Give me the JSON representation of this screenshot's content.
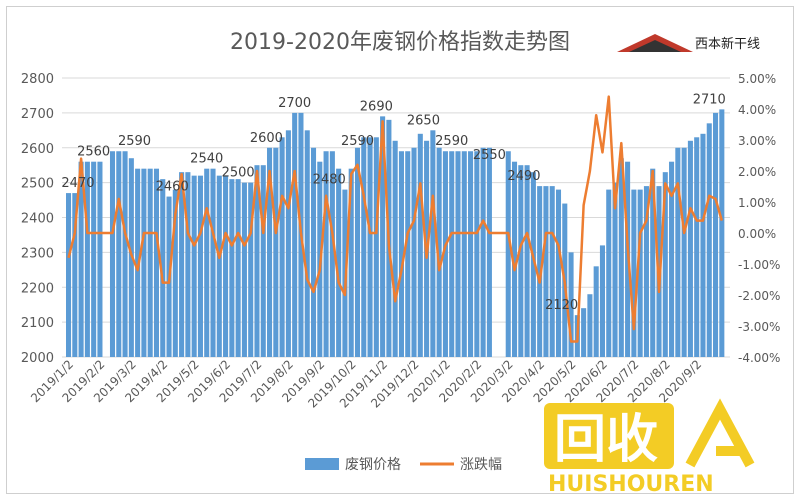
{
  "title": "2019-2020年废钢价格指数走势图",
  "logo": {
    "text": "西本新干线"
  },
  "watermark": {
    "text": "回收",
    "subtext": "HUISHOUREN"
  },
  "colors": {
    "bar": "#5B9BD5",
    "line": "#ED7D31",
    "axis": "#595959",
    "grid": "#d9d9d9"
  },
  "chart_data": {
    "type": "bar",
    "title": "2019-2020年废钢价格指数走势图",
    "xlabel": "",
    "ylabel": "",
    "ylim": [
      2000,
      2800
    ],
    "y2lim": [
      -4,
      5
    ],
    "yticks": [
      "2000",
      "2100",
      "2200",
      "2300",
      "2400",
      "2500",
      "2600",
      "2700",
      "2800"
    ],
    "y2ticks": [
      "-4.00%",
      "-3.00%",
      "-2.00%",
      "-1.00%",
      "0.00%",
      "1.00%",
      "2.00%",
      "3.00%",
      "4.00%",
      "5.00%"
    ],
    "categories": [
      "2019/1/2",
      "2019/2/2",
      "2019/3/2",
      "2019/4/2",
      "2019/5/2",
      "2019/6/2",
      "2019/7/2",
      "2019/8/2",
      "2019/9/2",
      "2019/10/2",
      "2019/11/2",
      "2019/12/2",
      "2020/1/2",
      "2020/2/2",
      "2020/3/2",
      "2020/4/2",
      "2020/5/2",
      "2020/6/2",
      "2020/7/2",
      "2020/8/2",
      "2020/9/2"
    ],
    "legend": [
      "废钢价格",
      "涨跌幅"
    ],
    "legend_position": "bottom",
    "annotations": [
      {
        "label": "2470",
        "x": 0.3,
        "value": 2470
      },
      {
        "label": "2560",
        "x": 0.8,
        "value": 2560
      },
      {
        "label": "2590",
        "x": 2.1,
        "value": 2590
      },
      {
        "label": "2460",
        "x": 3.3,
        "value": 2460
      },
      {
        "label": "2540",
        "x": 4.4,
        "value": 2540
      },
      {
        "label": "2500",
        "x": 5.4,
        "value": 2500
      },
      {
        "label": "2600",
        "x": 6.3,
        "value": 2600
      },
      {
        "label": "2700",
        "x": 7.2,
        "value": 2700
      },
      {
        "label": "2480",
        "x": 8.3,
        "value": 2480
      },
      {
        "label": "2590",
        "x": 9.2,
        "value": 2590
      },
      {
        "label": "2690",
        "x": 9.8,
        "value": 2690
      },
      {
        "label": "2650",
        "x": 11.3,
        "value": 2650
      },
      {
        "label": "2590",
        "x": 12.2,
        "value": 2590
      },
      {
        "label": "2550",
        "x": 13.4,
        "value": 2550
      },
      {
        "label": "2490",
        "x": 14.5,
        "value": 2490
      },
      {
        "label": "2120",
        "x": 15.7,
        "value": 2120
      },
      {
        "label": "2710",
        "x": 20.4,
        "value": 2710
      }
    ],
    "series": [
      {
        "name": "废钢价格",
        "type": "bar",
        "x": [
          0,
          0.2,
          0.4,
          0.6,
          0.8,
          1.0,
          1.2,
          1.4,
          1.6,
          1.8,
          2.0,
          2.2,
          2.4,
          2.6,
          2.8,
          3.0,
          3.2,
          3.4,
          3.6,
          3.8,
          4.0,
          4.2,
          4.4,
          4.6,
          4.8,
          5.0,
          5.2,
          5.4,
          5.6,
          5.8,
          6.0,
          6.2,
          6.4,
          6.6,
          6.8,
          7.0,
          7.2,
          7.4,
          7.6,
          7.8,
          8.0,
          8.2,
          8.4,
          8.6,
          8.8,
          9.0,
          9.2,
          9.4,
          9.6,
          9.8,
          10.0,
          10.2,
          10.4,
          10.6,
          10.8,
          11.0,
          11.2,
          11.4,
          11.6,
          11.8,
          12.0,
          12.2,
          12.4,
          12.6,
          12.8,
          13.0,
          13.2,
          13.4,
          13.6,
          13.8,
          14.0,
          14.2,
          14.4,
          14.6,
          14.8,
          15.0,
          15.2,
          15.4,
          15.6,
          15.8,
          16.0,
          16.2,
          16.4,
          16.6,
          16.8,
          17.0,
          17.2,
          17.4,
          17.6,
          17.8,
          18.0,
          18.2,
          18.4,
          18.6,
          18.8,
          19.0,
          19.2,
          19.4,
          19.6,
          19.8,
          20.0,
          20.2,
          20.4,
          20.6,
          20.8
        ],
        "values": [
          2470,
          2470,
          2560,
          2560,
          2560,
          2560,
          null,
          2590,
          2590,
          2590,
          2570,
          2540,
          2540,
          2540,
          2540,
          2510,
          2460,
          2480,
          2530,
          2530,
          2520,
          2520,
          2540,
          2540,
          2520,
          2520,
          2510,
          2510,
          2500,
          2500,
          2550,
          2550,
          2600,
          2600,
          2630,
          2650,
          2700,
          2700,
          2650,
          2600,
          2560,
          2590,
          2590,
          2540,
          2480,
          2540,
          2600,
          2630,
          2630,
          2630,
          2690,
          2680,
          2620,
          2590,
          2590,
          2600,
          2640,
          2620,
          2650,
          2600,
          2590,
          2590,
          2590,
          2590,
          2590,
          2590,
          2600,
          2600,
          null,
          null,
          2590,
          2560,
          2550,
          2550,
          2530,
          2490,
          2490,
          2490,
          2480,
          2440,
          2300,
          2120,
          2140,
          2180,
          2260,
          2320,
          2480,
          2500,
          2570,
          2560,
          2480,
          2480,
          2490,
          2540,
          2490,
          2530,
          2560,
          2600,
          2600,
          2620,
          2630,
          2640,
          2670,
          2700,
          2710
        ]
      },
      {
        "name": "涨跌幅",
        "type": "line",
        "x": [
          0,
          0.2,
          0.4,
          0.6,
          0.8,
          1.0,
          1.2,
          1.4,
          1.6,
          1.8,
          2.0,
          2.2,
          2.4,
          2.6,
          2.8,
          3.0,
          3.2,
          3.4,
          3.6,
          3.8,
          4.0,
          4.2,
          4.4,
          4.6,
          4.8,
          5.0,
          5.2,
          5.4,
          5.6,
          5.8,
          6.0,
          6.2,
          6.4,
          6.6,
          6.8,
          7.0,
          7.2,
          7.4,
          7.6,
          7.8,
          8.0,
          8.2,
          8.4,
          8.6,
          8.8,
          9.0,
          9.2,
          9.4,
          9.6,
          9.8,
          10.0,
          10.2,
          10.4,
          10.6,
          10.8,
          11.0,
          11.2,
          11.4,
          11.6,
          11.8,
          12.0,
          12.2,
          12.4,
          12.6,
          12.8,
          13.0,
          13.2,
          13.4,
          13.6,
          13.8,
          14.0,
          14.2,
          14.4,
          14.6,
          14.8,
          15.0,
          15.2,
          15.4,
          15.6,
          15.8,
          16.0,
          16.2,
          16.4,
          16.6,
          16.8,
          17.0,
          17.2,
          17.4,
          17.6,
          17.8,
          18.0,
          18.2,
          18.4,
          18.6,
          18.8,
          19.0,
          19.2,
          19.4,
          19.6,
          19.8,
          20.0,
          20.2,
          20.4,
          20.6,
          20.8
        ],
        "values": [
          -0.8,
          0,
          2.4,
          0,
          0,
          0,
          0,
          0,
          1.1,
          0,
          -0.7,
          -1.2,
          0,
          0,
          0,
          -1.6,
          -1.6,
          0.6,
          1.9,
          0,
          -0.4,
          0,
          0.8,
          0,
          -0.8,
          0,
          -0.4,
          0,
          -0.4,
          0,
          2.0,
          0,
          2.0,
          0,
          1.2,
          0.8,
          2.0,
          0,
          -1.5,
          -1.9,
          -1.2,
          1.2,
          0,
          -1.6,
          -2.0,
          1.9,
          2.2,
          1.2,
          0,
          0,
          3.6,
          -0.4,
          -2.2,
          -1.2,
          0,
          0.4,
          1.6,
          -0.8,
          1.2,
          -1.2,
          -0.4,
          0,
          0,
          0,
          0,
          0,
          0.4,
          0,
          0,
          0,
          0,
          -1.2,
          -0.4,
          0,
          -0.8,
          -1.6,
          0,
          0,
          -0.4,
          -1.6,
          -3.5,
          -3.5,
          0.9,
          2.0,
          3.8,
          2.6,
          4.4,
          0.8,
          2.9,
          -0.4,
          -3.1,
          0,
          0.4,
          2.0,
          -1.9,
          1.6,
          1.2,
          1.6,
          0,
          0.8,
          0.4,
          0.4,
          1.2,
          1.1,
          0.4
        ]
      }
    ]
  }
}
